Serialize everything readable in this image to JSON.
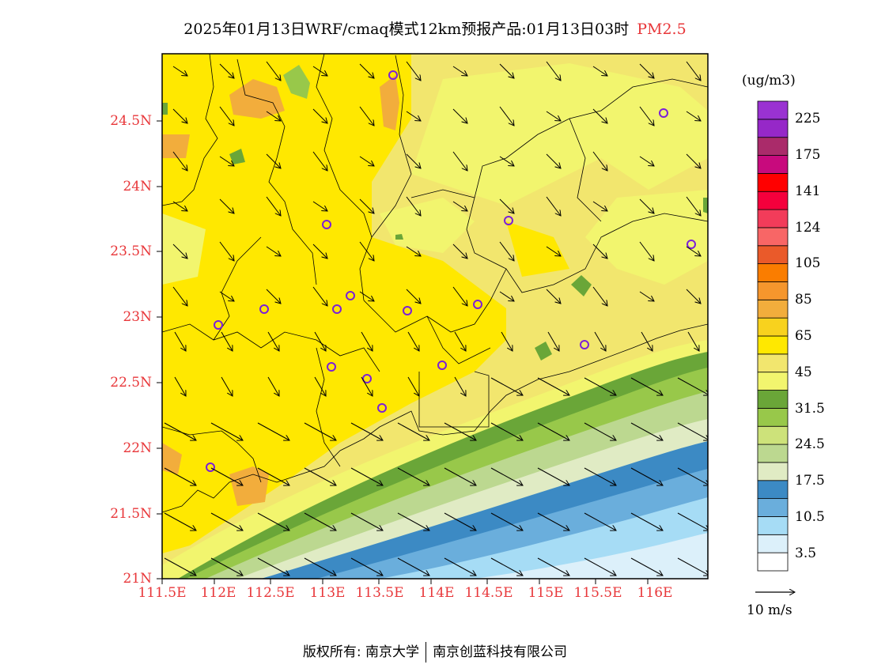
{
  "title": {
    "main": "2025年01月13日WRF/cmaq模式12km预报产品:01月13日03时",
    "variable": "PM2.5"
  },
  "axes": {
    "lat_labels": [
      "24.5N",
      "24N",
      "23.5N",
      "23N",
      "22.5N",
      "22N",
      "21.5N",
      "21N"
    ],
    "lon_labels": [
      "111.5E",
      "112E",
      "112.5E",
      "113E",
      "113.5E",
      "114E",
      "114.5E",
      "115E",
      "115.5E",
      "116E"
    ]
  },
  "colorbar": {
    "unit": "(ug/m3)",
    "colors": [
      "#ffffff",
      "#dcf0fa",
      "#a6dcf5",
      "#6aaedc",
      "#3c8ac4",
      "#e0ebc4",
      "#bcd890",
      "#cde27a",
      "#98c84a",
      "#6aa638",
      "#f2f56e",
      "#f2e66e",
      "#ffe800",
      "#f8d21e",
      "#f2ad3c",
      "#f5962d",
      "#fa7d00",
      "#ea5a2a",
      "#f86666",
      "#f23c5a",
      "#f5003c",
      "#ff0000",
      "#c80a7d",
      "#aa2b6a",
      "#9628c8",
      "#9a32d2"
    ],
    "labels": [
      "3.5",
      "10.5",
      "17.5",
      "24.5",
      "31.5",
      "45",
      "65",
      "85",
      "105",
      "124",
      "141",
      "175",
      "225"
    ]
  },
  "wind_reference": {
    "label": "10 m/s"
  },
  "footer": {
    "left": "版权所有: 南京大学",
    "right": "南京创蓝科技有限公司"
  }
}
